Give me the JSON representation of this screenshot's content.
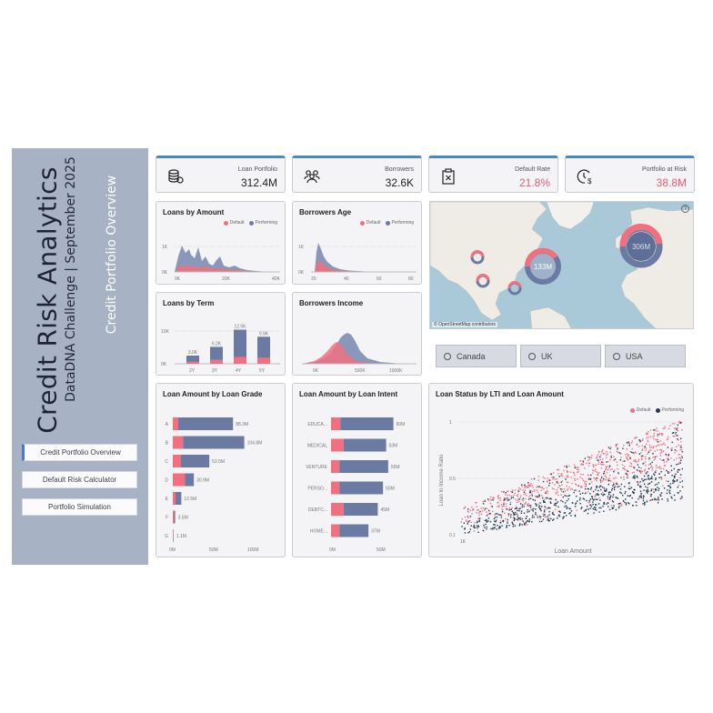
{
  "sidebar": {
    "title": "Credit Risk Analytics",
    "subtitle": "DataDNA Challenge | September 2025",
    "page_name": "Credit Portfolio Overview",
    "nav": [
      "Credit Portfolio Overview",
      "Default Risk Calculator",
      "Portfolio Simulation"
    ]
  },
  "kpis": [
    {
      "label": "Loan Portfolio",
      "value": "312.4M",
      "icon": "coins-icon"
    },
    {
      "label": "Borrowers",
      "value": "32.6K",
      "icon": "people-icon"
    },
    {
      "label": "Default Rate",
      "value": "21.8%",
      "icon": "clipboard-x-icon"
    },
    {
      "label": "Portfolio at Risk",
      "value": "38.8M",
      "icon": "clock-dollar-icon"
    }
  ],
  "legend": {
    "default": "Default",
    "performing": "Performing"
  },
  "colors": {
    "default": "#f0707f",
    "performing": "#6a7aa3",
    "performing_dark": "#1d3a52",
    "accent": "#4a86c8"
  },
  "charts": {
    "loans_by_amount": {
      "title": "Loans by Amount",
      "x_ticks": [
        "0K",
        "20K",
        "40K"
      ],
      "y_ticks": [
        "1K",
        "0K"
      ]
    },
    "borrowers_age": {
      "title": "Borrowers Age",
      "x_ticks": [
        "20",
        "40",
        "60",
        "80"
      ],
      "y_ticks": [
        "1K",
        "0K"
      ]
    },
    "loans_by_term": {
      "title": "Loans by Term",
      "y_ticks": [
        "10K",
        "0K"
      ],
      "x_ticks": [
        "2Y",
        "3Y",
        "4Y",
        "5Y"
      ]
    },
    "borrowers_income": {
      "title": "Borrowers Income",
      "x_ticks": [
        "0K",
        "500K",
        "1000K"
      ]
    },
    "loan_amount_by_grade": {
      "title": "Loan Amount by Loan Grade",
      "x_ticks": [
        "0M",
        "50M",
        "100M"
      ]
    },
    "loan_amount_by_intent": {
      "title": "Loan Amount by Loan Intent",
      "x_ticks": [
        "0M",
        "50M"
      ]
    },
    "loan_status_lti": {
      "title": "Loan Status by LTI and Loan Amount",
      "xlabel": "Loan Amount",
      "ylabel": "Loan to Income Ratio",
      "x_ticks": [
        "1K"
      ],
      "y_ticks": [
        "1",
        "0.5",
        "0.1"
      ]
    }
  },
  "chart_data": [
    {
      "type": "bar",
      "title": "Loans by Term",
      "categories": [
        "2Y",
        "3Y",
        "4Y",
        "5Y"
      ],
      "series": [
        {
          "name": "Default",
          "values": [
            0.7,
            1.4,
            2.5,
            2.2
          ]
        },
        {
          "name": "Performing",
          "values": [
            2.3,
            4.8,
            10.0,
            7.7
          ]
        }
      ],
      "totals": [
        "3.0K",
        "6.2K",
        "12.5K",
        "9.9K"
      ],
      "ylim": [
        0,
        14
      ]
    },
    {
      "type": "bar",
      "title": "Loan Amount by Loan Grade",
      "categories": [
        "A",
        "B",
        "C",
        "D",
        "E",
        "F",
        "G"
      ],
      "series": [
        {
          "name": "Default",
          "values": [
            8,
            15,
            12,
            18,
            4,
            2,
            0.5
          ]
        },
        {
          "name": "Performing",
          "values": [
            80.3,
            89.8,
            41.5,
            12.9,
            8.5,
            1.5,
            0.6
          ]
        }
      ],
      "labels": [
        "88.3M",
        "104.8M",
        "53.5M",
        "30.9M",
        "12.5M",
        "3.5M",
        "1.1M"
      ],
      "xlim": [
        0,
        120
      ]
    },
    {
      "type": "bar",
      "title": "Loan Amount by Loan Intent",
      "categories": [
        "EDUCA...",
        "MEDICAL",
        "VENTURE",
        "PERSO...",
        "DEBTC...",
        "HOME..."
      ],
      "series": [
        {
          "name": "Default",
          "values": [
            9,
            12,
            8,
            8,
            12,
            8
          ]
        },
        {
          "name": "Performing",
          "values": [
            51,
            41,
            47,
            42,
            33,
            28
          ]
        }
      ],
      "labels": [
        "60M",
        "53M",
        "55M",
        "50M",
        "45M",
        "37M"
      ],
      "xlim": [
        0,
        70
      ]
    },
    {
      "type": "area",
      "title": "Loans by Amount",
      "x": [
        0,
        2,
        4,
        6,
        8,
        10,
        12,
        14,
        16,
        18,
        20,
        22,
        24,
        26,
        28,
        30,
        32,
        34,
        36,
        38,
        40
      ],
      "series": [
        {
          "name": "Default",
          "values": [
            0.05,
            0.3,
            0.35,
            0.3,
            0.28,
            0.35,
            0.32,
            0.3,
            0.2,
            0.18,
            0.25,
            0.12,
            0.12,
            0.1,
            0.08,
            0.06,
            0.05,
            0.04,
            0.03,
            0.03,
            0.02
          ]
        },
        {
          "name": "Performing",
          "values": [
            0.1,
            0.8,
            1.3,
            1.1,
            1.0,
            1.25,
            0.9,
            0.85,
            0.5,
            0.45,
            0.7,
            0.3,
            0.28,
            0.25,
            0.2,
            0.12,
            0.1,
            0.08,
            0.06,
            0.05,
            0.04
          ]
        }
      ]
    },
    {
      "type": "area",
      "title": "Borrowers Age",
      "x": [
        20,
        22,
        24,
        26,
        28,
        30,
        34,
        38,
        42,
        48,
        55,
        65,
        80
      ],
      "series": [
        {
          "name": "Default",
          "values": [
            0.1,
            0.55,
            0.7,
            0.55,
            0.4,
            0.3,
            0.15,
            0.08,
            0.05,
            0.03,
            0.02,
            0.01,
            0.0
          ]
        },
        {
          "name": "Performing",
          "values": [
            0.2,
            1.2,
            1.5,
            1.2,
            0.9,
            0.65,
            0.35,
            0.2,
            0.12,
            0.06,
            0.03,
            0.01,
            0.0
          ]
        }
      ]
    },
    {
      "type": "area",
      "title": "Borrowers Income",
      "x": [
        0,
        100,
        200,
        300,
        400,
        450,
        500,
        550,
        600,
        700,
        800,
        1000
      ],
      "series": [
        {
          "name": "Default",
          "values": [
            0.0,
            0.05,
            0.2,
            0.5,
            0.8,
            0.9,
            0.7,
            0.4,
            0.2,
            0.05,
            0.01,
            0.0
          ]
        },
        {
          "name": "Performing",
          "values": [
            0.0,
            0.05,
            0.2,
            0.5,
            0.9,
            1.3,
            1.5,
            1.2,
            0.7,
            0.2,
            0.05,
            0.0
          ]
        }
      ]
    }
  ],
  "map": {
    "attribution": "© OpenStreetMap contributors",
    "donut_labels": [
      "133M",
      "306M"
    ]
  },
  "countries": [
    "Canada",
    "UK",
    "USA"
  ]
}
